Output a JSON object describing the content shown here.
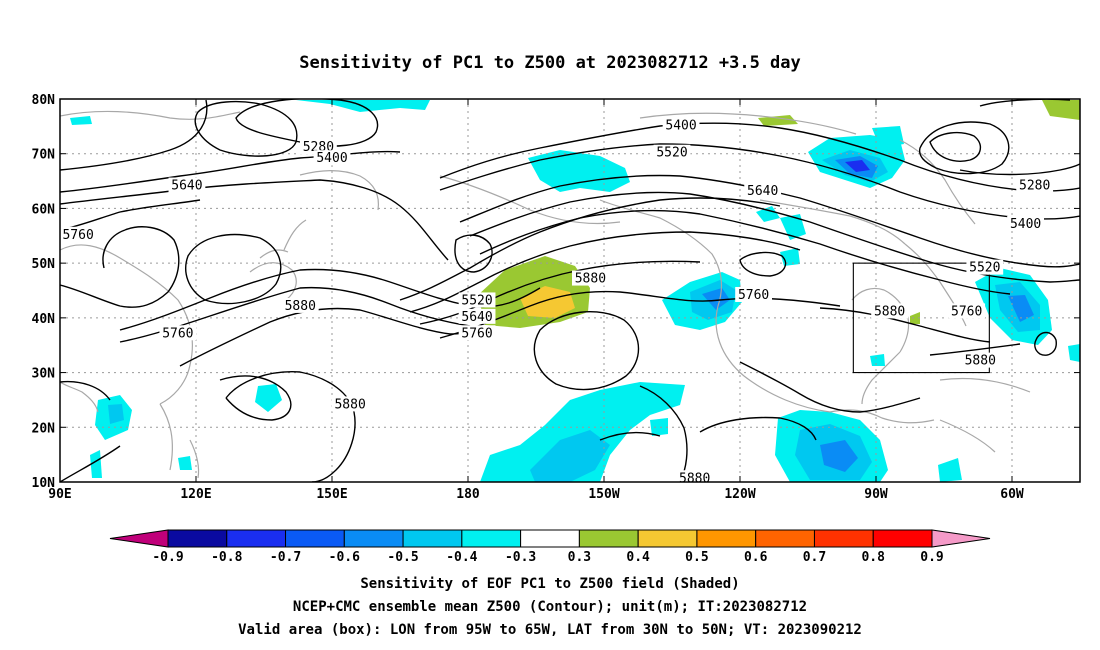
{
  "title": "Sensitivity of PC1 to Z500 at 2023082712 +3.5 day",
  "axes": {
    "x_ticks": [
      {
        "lon": 90,
        "label": "90E"
      },
      {
        "lon": 120,
        "label": "120E"
      },
      {
        "lon": 150,
        "label": "150E"
      },
      {
        "lon": 180,
        "label": "180"
      },
      {
        "lon": 210,
        "label": "150W"
      },
      {
        "lon": 240,
        "label": "120W"
      },
      {
        "lon": 270,
        "label": "90W"
      },
      {
        "lon": 300,
        "label": "60W"
      }
    ],
    "y_ticks": [
      {
        "lat": 10,
        "label": "10N"
      },
      {
        "lat": 20,
        "label": "20N"
      },
      {
        "lat": 30,
        "label": "30N"
      },
      {
        "lat": 40,
        "label": "40N"
      },
      {
        "lat": 50,
        "label": "50N"
      },
      {
        "lat": 60,
        "label": "60N"
      },
      {
        "lat": 70,
        "label": "70N"
      },
      {
        "lat": 80,
        "label": "80N"
      }
    ],
    "lon_range": [
      90,
      315
    ],
    "lat_range": [
      10,
      80
    ],
    "grid": true
  },
  "contour_labels": [
    {
      "text": "5280",
      "lon": 147,
      "lat": 71
    },
    {
      "text": "5400",
      "lon": 150,
      "lat": 69
    },
    {
      "text": "5640",
      "lon": 118,
      "lat": 64
    },
    {
      "text": "5760",
      "lon": 94,
      "lat": 55
    },
    {
      "text": "5880",
      "lon": 143,
      "lat": 42
    },
    {
      "text": "5760",
      "lon": 116,
      "lat": 37
    },
    {
      "text": "5880",
      "lon": 154,
      "lat": 24
    },
    {
      "text": "5520",
      "lon": 182,
      "lat": 43
    },
    {
      "text": "5640",
      "lon": 182,
      "lat": 40
    },
    {
      "text": "5760",
      "lon": 182,
      "lat": 37
    },
    {
      "text": "5880",
      "lon": 207,
      "lat": 47
    },
    {
      "text": "5400",
      "lon": 227,
      "lat": 75
    },
    {
      "text": "5520",
      "lon": 225,
      "lat": 70
    },
    {
      "text": "5640",
      "lon": 245,
      "lat": 63
    },
    {
      "text": "5760",
      "lon": 243,
      "lat": 44
    },
    {
      "text": "5880",
      "lon": 273,
      "lat": 41
    },
    {
      "text": "5280",
      "lon": 305,
      "lat": 64
    },
    {
      "text": "5400",
      "lon": 303,
      "lat": 57
    },
    {
      "text": "5520",
      "lon": 294,
      "lat": 49
    },
    {
      "text": "5760",
      "lon": 290,
      "lat": 41
    },
    {
      "text": "5880",
      "lon": 293,
      "lat": 32
    },
    {
      "text": "5880",
      "lon": 230,
      "lat": 10.5
    }
  ],
  "box": {
    "lon_min": 265,
    "lon_max": 295,
    "lat_min": 30,
    "lat_max": 50
  },
  "colorbar": {
    "labels": [
      "-0.9",
      "-0.8",
      "-0.7",
      "-0.6",
      "-0.5",
      "-0.4",
      "-0.3",
      "0.3",
      "0.4",
      "0.5",
      "0.6",
      "0.7",
      "0.8",
      "0.9"
    ],
    "colors": [
      "#0a0aa0",
      "#1a2ef0",
      "#0a5af5",
      "#0a8cf5",
      "#00c8f0",
      "#00f0f0",
      "#ffffff",
      "#9ac832",
      "#f5c832",
      "#ff9600",
      "#ff6400",
      "#ff3200",
      "#ff0000"
    ],
    "low_extend_color": "#c0007a",
    "high_extend_color": "#f59ac8"
  },
  "caption": [
    "Sensitivity of EOF PC1 to Z500 field (Shaded)",
    "NCEP+CMC ensemble mean Z500 (Contour); unit(m); IT:2023082712",
    "Valid area (box): LON from 95W to 65W, LAT from 30N to 50N; VT: 2023090212"
  ]
}
